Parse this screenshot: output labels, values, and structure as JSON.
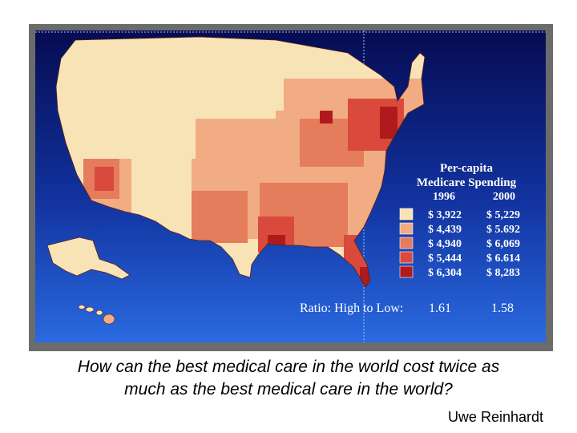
{
  "legend": {
    "title_line1": "Per-capita",
    "title_line2": "Medicare Spending",
    "year1": "1996",
    "year2": "2000",
    "rows": [
      {
        "v1996": "$ 3,922",
        "v2000": "$ 5,229",
        "color": "#f8e3b6"
      },
      {
        "v1996": "$ 4,439",
        "v2000": "$ 5.692",
        "color": "#f1ac84"
      },
      {
        "v1996": "$ 4,940",
        "v2000": "$ 6,069",
        "color": "#e57c5c"
      },
      {
        "v1996": "$ 5,444",
        "v2000": "$ 6.614",
        "color": "#d94a3d"
      },
      {
        "v1996": "$ 6,304",
        "v2000": "$ 8,283",
        "color": "#b11a1c"
      }
    ],
    "ratio_label": "Ratio: High to Low:",
    "ratio_1996": "1.61",
    "ratio_2000": "1.58"
  },
  "caption": {
    "line1": "How can the best medical care in the world cost twice as",
    "line2": "much as the best medical care in the world?"
  },
  "author": "Uwe Reinhardt",
  "colors": {
    "background_top": "#060c52",
    "background_bottom": "#2a6ae0",
    "frame": "#6b6b6b"
  }
}
